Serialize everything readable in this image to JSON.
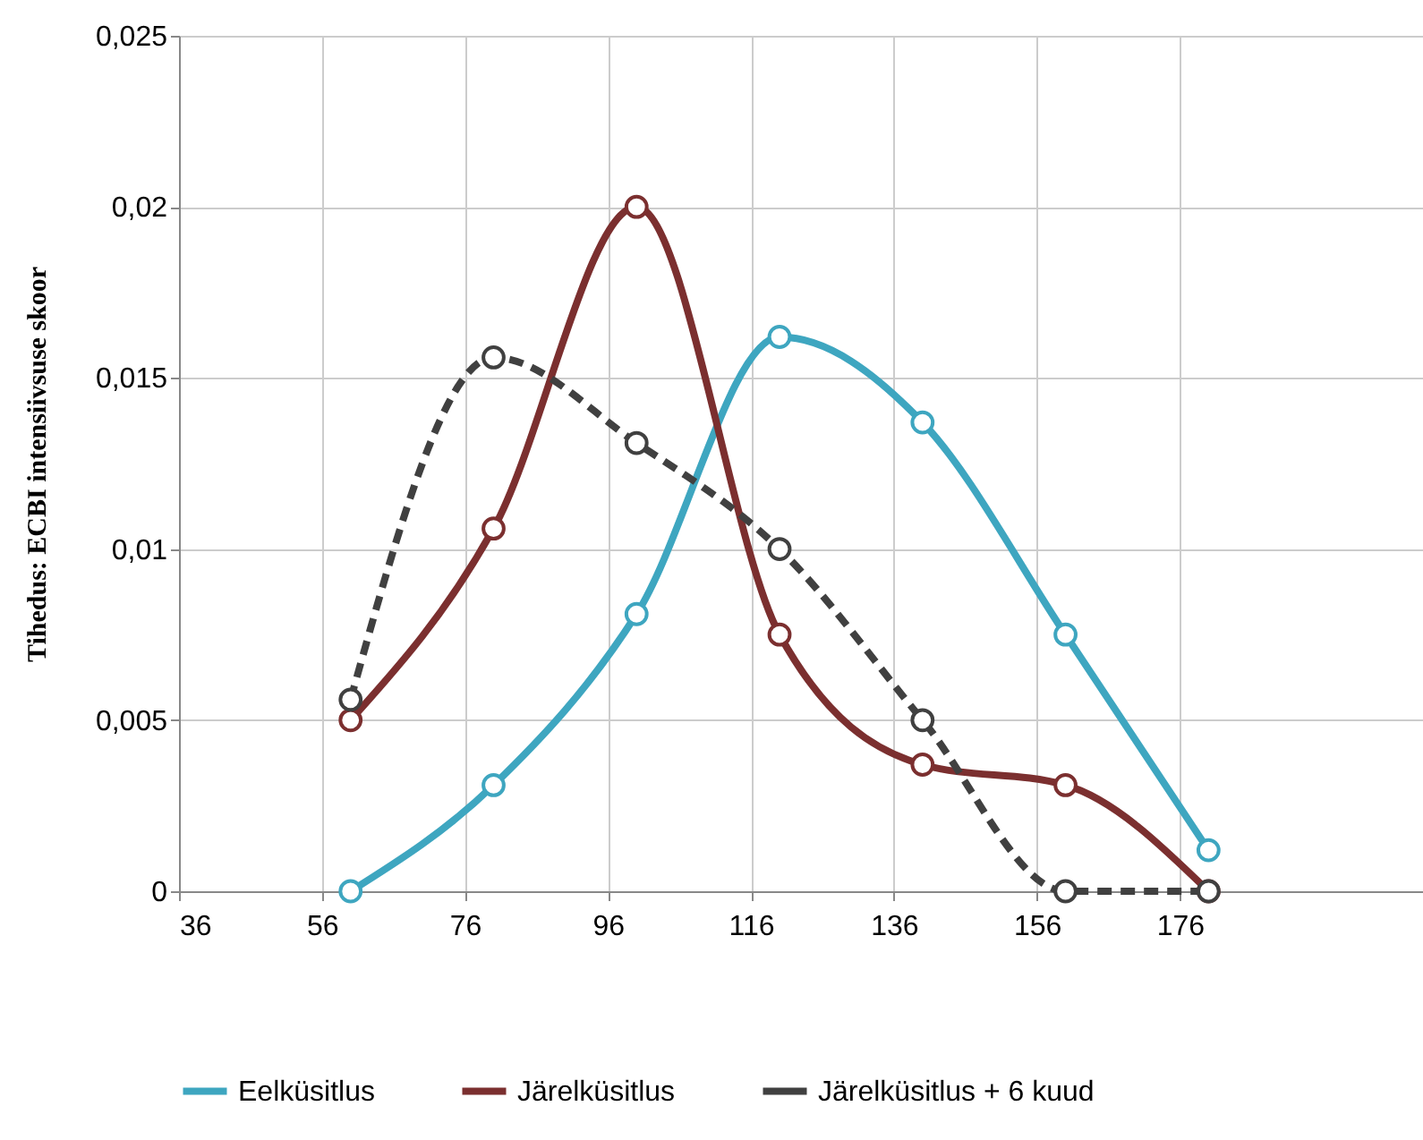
{
  "chart_data": {
    "type": "line",
    "ylabel": "Tihedus: ECBI intensiivsuse skoor",
    "x": [
      60,
      80,
      100,
      120,
      140,
      160,
      180
    ],
    "series": [
      {
        "name": "Eelküsitlus",
        "color": "#3ea6c0",
        "line_style": "solid",
        "values": [
          0,
          0.0031,
          0.0081,
          0.0162,
          0.0137,
          0.0075,
          0.0012
        ]
      },
      {
        "name": "Järelküsitlus",
        "color": "#7b2f2f",
        "line_style": "solid",
        "values": [
          0.005,
          0.0106,
          0.02,
          0.0075,
          0.0037,
          0.0031,
          0
        ]
      },
      {
        "name": "Järelküsitlus + 6 kuud",
        "color": "#404040",
        "line_style": "dashed",
        "values": [
          0.0056,
          0.0156,
          0.0131,
          0.01,
          0.005,
          0,
          0
        ]
      }
    ],
    "xlim": [
      36,
      210
    ],
    "xticks": [
      36,
      56,
      76,
      96,
      116,
      136,
      156,
      176
    ],
    "ylim": [
      0,
      0.025
    ],
    "yticks": [
      {
        "value": 0,
        "label": "0"
      },
      {
        "value": 0.005,
        "label": "0,005"
      },
      {
        "value": 0.01,
        "label": "0,01"
      },
      {
        "value": 0.015,
        "label": "0,015"
      },
      {
        "value": 0.02,
        "label": "0,02"
      },
      {
        "value": 0.025,
        "label": "0,025"
      }
    ],
    "grid": true,
    "legend": "bottom",
    "marker": "circle"
  }
}
